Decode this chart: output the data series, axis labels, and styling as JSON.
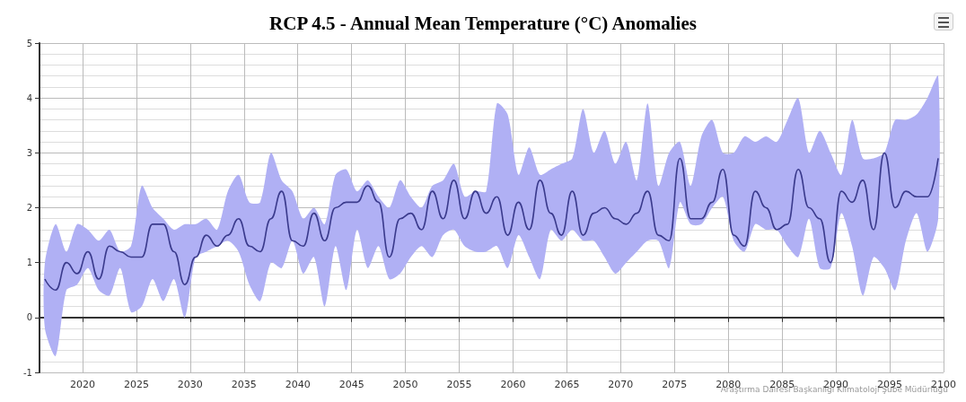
{
  "chart_data": {
    "type": "line",
    "title": "RCP 4.5 - Annual Mean Temperature (°C) Anomalies",
    "x": [
      2016.5,
      2017.5,
      2018.5,
      2019.5,
      2020.5,
      2021.5,
      2022.5,
      2023.5,
      2024.5,
      2025.5,
      2026.5,
      2027.5,
      2028.5,
      2029.5,
      2030.5,
      2031.5,
      2032.5,
      2033.5,
      2034.5,
      2035.5,
      2036.5,
      2037.5,
      2038.5,
      2039.5,
      2040.5,
      2041.5,
      2042.5,
      2043.5,
      2044.5,
      2045.5,
      2046.5,
      2047.5,
      2048.5,
      2049.5,
      2050.5,
      2051.5,
      2052.5,
      2053.5,
      2054.5,
      2055.5,
      2056.5,
      2057.5,
      2058.5,
      2059.5,
      2060.5,
      2061.5,
      2062.5,
      2063.5,
      2064.5,
      2065.5,
      2066.5,
      2067.5,
      2068.5,
      2069.5,
      2070.5,
      2071.5,
      2072.5,
      2073.5,
      2074.5,
      2075.5,
      2076.5,
      2077.5,
      2078.5,
      2079.5,
      2080.5,
      2081.5,
      2082.5,
      2083.5,
      2084.5,
      2085.5,
      2086.5,
      2087.5,
      2088.5,
      2089.5,
      2090.5,
      2091.5,
      2092.5,
      2093.5,
      2094.5,
      2095.5,
      2096.5,
      2097.5,
      2098.5,
      2099.5
    ],
    "series": [
      {
        "color": "#3a3a8c",
        "values": [
          0.7,
          0.5,
          1.0,
          0.8,
          1.2,
          0.7,
          1.3,
          1.2,
          1.1,
          1.1,
          1.7,
          1.7,
          1.2,
          0.6,
          1.1,
          1.5,
          1.3,
          1.5,
          1.8,
          1.3,
          1.2,
          1.8,
          2.3,
          1.4,
          1.3,
          1.9,
          1.4,
          2.0,
          2.1,
          2.1,
          2.4,
          2.1,
          1.1,
          1.8,
          1.9,
          1.6,
          2.3,
          1.8,
          2.5,
          1.8,
          2.3,
          1.9,
          2.2,
          1.5,
          2.1,
          1.6,
          2.5,
          1.9,
          1.5,
          2.3,
          1.5,
          1.9,
          2.0,
          1.8,
          1.7,
          1.9,
          2.3,
          1.5,
          1.4,
          2.9,
          1.8,
          1.8,
          2.1,
          2.7,
          1.5,
          1.3,
          2.3,
          2.0,
          1.6,
          1.7,
          2.7,
          2.0,
          1.8,
          1.0,
          2.3,
          2.1,
          2.5,
          1.6,
          3.0,
          2.0,
          2.3,
          2.2,
          2.2,
          2.9
        ],
        "upper": [
          1.0,
          1.7,
          1.2,
          1.7,
          1.6,
          1.4,
          1.6,
          1.2,
          1.3,
          2.4,
          2.0,
          1.8,
          1.6,
          1.7,
          1.7,
          1.8,
          1.6,
          2.3,
          2.6,
          2.1,
          2.1,
          3.0,
          2.5,
          2.3,
          1.8,
          2.0,
          1.7,
          2.6,
          2.7,
          2.3,
          2.5,
          2.2,
          2.0,
          2.5,
          2.2,
          2.0,
          2.4,
          2.5,
          2.8,
          2.2,
          2.3,
          2.3,
          3.9,
          3.7,
          2.6,
          3.1,
          2.6,
          2.7,
          2.8,
          2.9,
          3.8,
          3.0,
          3.4,
          2.8,
          3.2,
          2.5,
          3.9,
          2.4,
          3.0,
          3.2,
          2.4,
          3.3,
          3.6,
          3.0,
          3.0,
          3.3,
          3.2,
          3.3,
          3.2,
          3.6,
          4.0,
          3.0,
          3.4,
          3.0,
          2.6,
          3.6,
          2.9,
          2.9,
          3.0,
          3.6,
          3.6,
          3.7,
          4.0,
          4.4
        ],
        "lower": [
          -0.2,
          -0.7,
          0.5,
          0.6,
          0.9,
          0.5,
          0.4,
          0.9,
          0.1,
          0.2,
          0.7,
          0.3,
          0.7,
          0.0,
          1.1,
          1.2,
          1.3,
          1.4,
          1.2,
          0.6,
          0.3,
          1.0,
          0.9,
          1.4,
          0.8,
          1.1,
          0.2,
          1.3,
          0.5,
          1.6,
          0.9,
          1.3,
          0.7,
          0.8,
          1.1,
          1.3,
          1.1,
          1.5,
          1.6,
          1.3,
          1.2,
          1.2,
          1.3,
          0.9,
          1.5,
          1.1,
          0.7,
          1.6,
          1.4,
          1.6,
          1.4,
          1.4,
          1.1,
          0.8,
          1.0,
          1.2,
          1.4,
          1.4,
          0.9,
          2.1,
          1.7,
          1.7,
          2.0,
          2.2,
          1.4,
          1.2,
          1.7,
          1.6,
          1.6,
          1.3,
          1.1,
          1.8,
          0.9,
          0.9,
          1.9,
          1.3,
          0.4,
          1.1,
          0.9,
          0.5,
          1.4,
          1.9,
          1.2,
          1.8
        ]
      }
    ],
    "xlim": [
      2016,
      2100
    ],
    "xticks": [
      2020,
      2025,
      2030,
      2035,
      2040,
      2045,
      2050,
      2055,
      2060,
      2065,
      2070,
      2075,
      2080,
      2085,
      2090,
      2095,
      2100
    ],
    "ylim": [
      -1,
      5
    ],
    "yticks": [
      -1,
      0,
      1,
      2,
      3,
      4,
      5
    ],
    "grid": true,
    "marker": "none",
    "line_style": "solid",
    "annotations": [
      "Araştırma Dairesi Başkanlığı Klimatoloji Şube Müdürlüğü"
    ]
  }
}
